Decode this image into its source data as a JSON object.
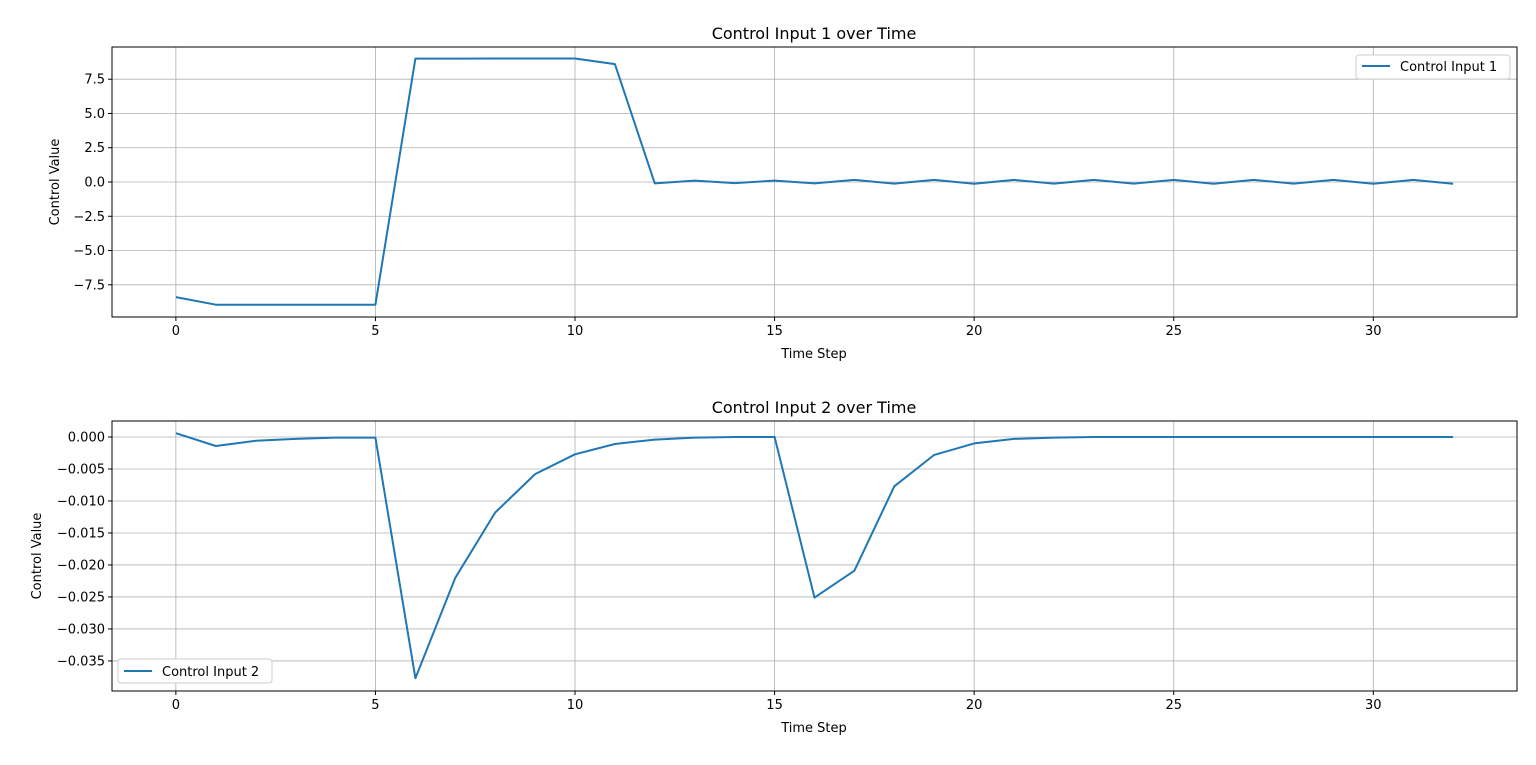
{
  "chart_data": [
    {
      "type": "line",
      "title": "Control Input 1 over Time",
      "xlabel": "Time Step",
      "ylabel": "Control Value",
      "xlim": [
        -1.6,
        33.6
      ],
      "ylim": [
        -9.85,
        9.85
      ],
      "xticks": [
        0,
        5,
        10,
        15,
        20,
        25,
        30
      ],
      "xtick_labels": [
        "0",
        "5",
        "10",
        "15",
        "20",
        "25",
        "30"
      ],
      "yticks": [
        -7.5,
        -5.0,
        -2.5,
        0.0,
        2.5,
        5.0,
        7.5
      ],
      "ytick_labels": [
        "−7.5",
        "−5.0",
        "−2.5",
        "0.0",
        "2.5",
        "5.0",
        "7.5"
      ],
      "grid": true,
      "legend_position": "upper right",
      "color": "#1f77b4",
      "series": [
        {
          "name": "Control Input 1",
          "x": [
            0,
            1,
            2,
            3,
            4,
            5,
            6,
            7,
            8,
            9,
            10,
            11,
            12,
            13,
            14,
            15,
            16,
            17,
            18,
            19,
            20,
            21,
            22,
            23,
            24,
            25,
            26,
            27,
            28,
            29,
            30,
            31,
            32
          ],
          "y": [
            -8.4,
            -8.95,
            -8.95,
            -8.95,
            -8.95,
            -8.95,
            9.0,
            9.0,
            9.01,
            9.01,
            9.01,
            8.6,
            -0.1,
            0.1,
            -0.08,
            0.1,
            -0.1,
            0.15,
            -0.12,
            0.15,
            -0.13,
            0.15,
            -0.12,
            0.15,
            -0.12,
            0.15,
            -0.13,
            0.15,
            -0.12,
            0.15,
            -0.13,
            0.15,
            -0.13
          ]
        }
      ]
    },
    {
      "type": "line",
      "title": "Control Input 2 over Time",
      "xlabel": "Time Step",
      "ylabel": "Control Value",
      "xlim": [
        -1.6,
        33.6
      ],
      "ylim": [
        -0.0397,
        0.0025
      ],
      "xticks": [
        0,
        5,
        10,
        15,
        20,
        25,
        30
      ],
      "xtick_labels": [
        "0",
        "5",
        "10",
        "15",
        "20",
        "25",
        "30"
      ],
      "yticks": [
        -0.035,
        -0.03,
        -0.025,
        -0.02,
        -0.015,
        -0.01,
        -0.005,
        0.0
      ],
      "ytick_labels": [
        "−0.035",
        "−0.030",
        "−0.025",
        "−0.020",
        "−0.015",
        "−0.010",
        "−0.005",
        "0.000"
      ],
      "grid": true,
      "legend_position": "lower left",
      "color": "#1f77b4",
      "series": [
        {
          "name": "Control Input 2",
          "x": [
            0,
            1,
            2,
            3,
            4,
            5,
            6,
            7,
            8,
            9,
            10,
            11,
            12,
            13,
            14,
            15,
            16,
            17,
            18,
            19,
            20,
            21,
            22,
            23,
            24,
            25,
            26,
            27,
            28,
            29,
            30,
            31,
            32
          ],
          "y": [
            0.0006,
            -0.0014,
            -0.0006,
            -0.0003,
            -0.0001,
            -0.0001,
            -0.0377,
            -0.022,
            -0.0118,
            -0.0058,
            -0.0027,
            -0.0011,
            -0.0004,
            -0.0001,
            0.0,
            0.0,
            -0.0251,
            -0.0209,
            -0.0077,
            -0.0028,
            -0.001,
            -0.0003,
            -0.0001,
            0.0,
            0.0,
            0.0,
            0.0,
            0.0,
            0.0,
            0.0,
            0.0,
            0.0,
            0.0
          ]
        }
      ]
    }
  ]
}
